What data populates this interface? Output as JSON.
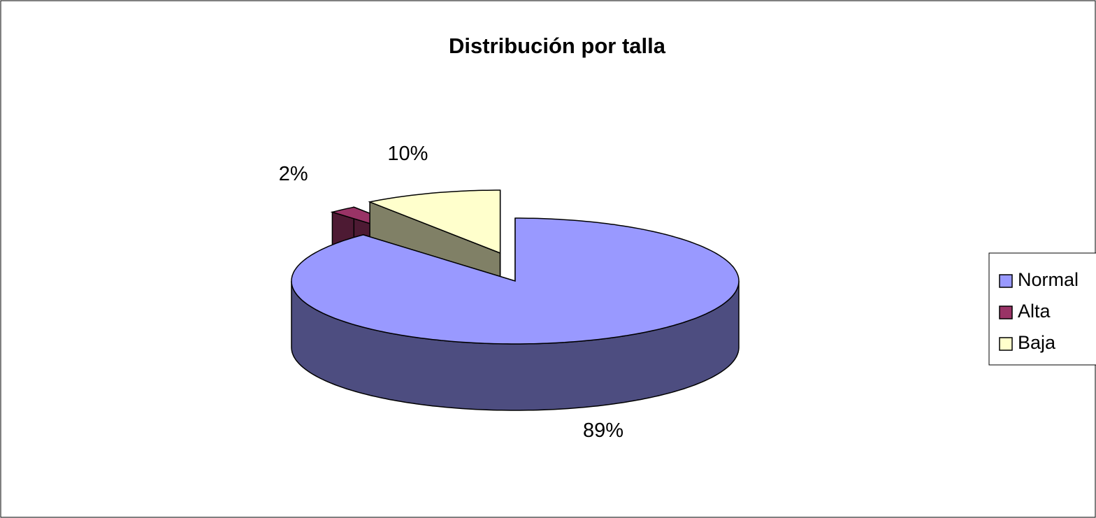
{
  "chart_data": {
    "type": "pie",
    "title": "Distribución por talla",
    "categories": [
      "Normal",
      "Alta",
      "Baja"
    ],
    "values": [
      89,
      2,
      10
    ],
    "value_labels": [
      "89%",
      "2%",
      "10%"
    ],
    "colors": [
      "#9999ff",
      "#993366",
      "#ffffcc"
    ],
    "legend": "right"
  }
}
